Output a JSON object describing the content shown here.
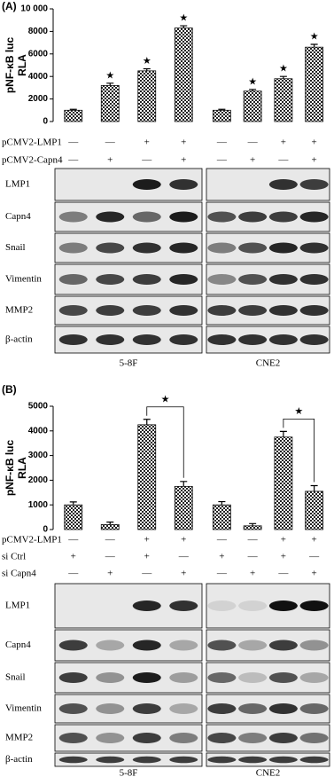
{
  "chart_data": [
    {
      "type": "bar",
      "panel_label": "(A)",
      "ylabel": [
        "pNF-κB luc",
        "RLA"
      ],
      "values": [
        1000,
        3200,
        4500,
        8300,
        1000,
        2700,
        3800,
        6600
      ],
      "errors": [
        80,
        200,
        180,
        200,
        80,
        150,
        200,
        250
      ],
      "significance": [
        null,
        "★",
        "★",
        "★",
        null,
        "★",
        "★",
        "★"
      ],
      "ylim": [
        0,
        10000
      ],
      "yticks": [
        0,
        2000,
        4000,
        6000,
        8000,
        {
          "value": 10000,
          "label": "10 000"
        }
      ]
    },
    {
      "type": "bar",
      "panel_label": "(B)",
      "ylabel": [
        "pNF-κB luc",
        "RLA"
      ],
      "values": [
        1000,
        200,
        4250,
        1750,
        1000,
        150,
        3750,
        1550
      ],
      "errors": [
        120,
        100,
        220,
        200,
        130,
        90,
        230,
        230
      ],
      "bracket_labels": [
        "★",
        "★"
      ],
      "ylim": [
        0,
        5000
      ],
      "yticks": [
        0,
        1000,
        2000,
        3000,
        4000,
        5000
      ]
    }
  ],
  "blots": [
    {
      "conditions": [
        {
          "name": "pCMV2-LMP1",
          "signs": [
            "—",
            "—",
            "+",
            "+",
            "—",
            "—",
            "+",
            "+"
          ]
        },
        {
          "name": "pCMV2-Capn4",
          "signs": [
            "—",
            "+",
            "—",
            "+",
            "—",
            "+",
            "—",
            "+"
          ]
        }
      ],
      "rows": [
        "LMP1",
        "Capn4",
        "Snail",
        "Vimentin",
        "MMP2",
        "β-actin"
      ],
      "groups": [
        "5-8F",
        "CNE2"
      ]
    },
    {
      "conditions": [
        {
          "name": "pCMV2-LMP1",
          "signs": [
            "—",
            "—",
            "+",
            "+",
            "—",
            "—",
            "+",
            "+"
          ]
        },
        {
          "name": "si Ctrl",
          "signs": [
            "+",
            "—",
            "+",
            "—",
            "+",
            "—",
            "+",
            "—"
          ]
        },
        {
          "name": "si Capn4",
          "signs": [
            "—",
            "+",
            "—",
            "+",
            "—",
            "+",
            "—",
            "+"
          ]
        }
      ],
      "rows": [
        "LMP1",
        "Capn4",
        "Snail",
        "Vimentin",
        "MMP2",
        "β-actin"
      ],
      "groups": [
        "5-8F",
        "CNE2"
      ]
    }
  ]
}
